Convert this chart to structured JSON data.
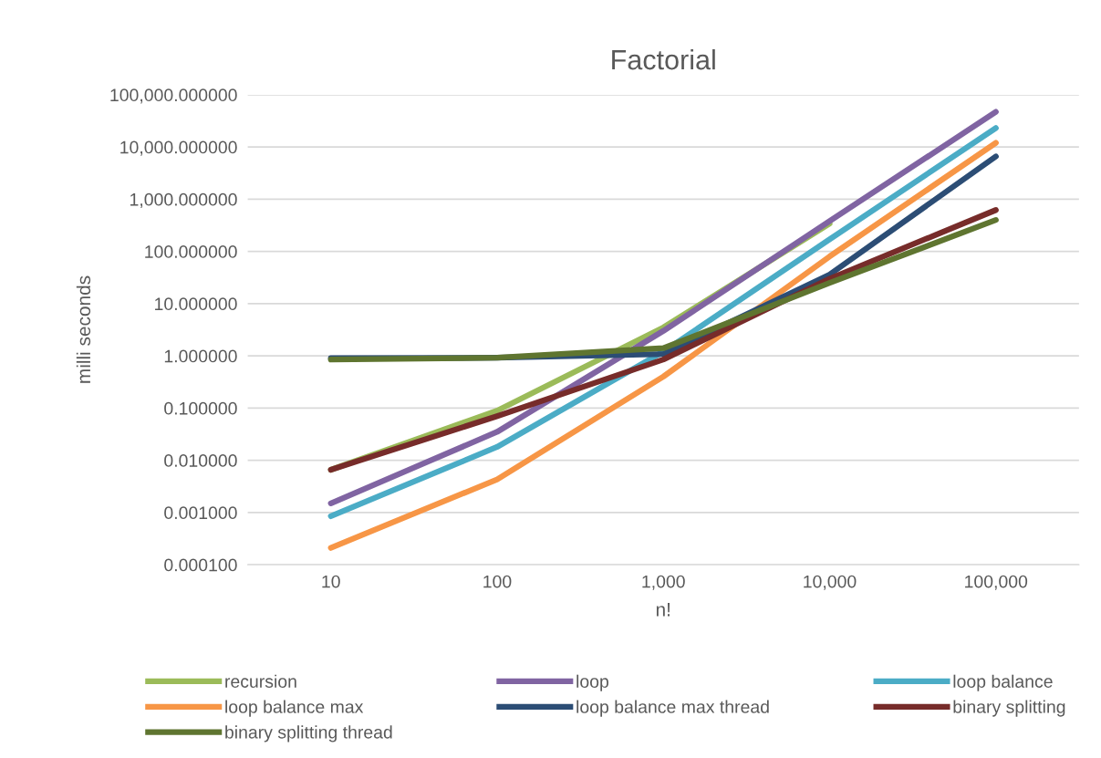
{
  "chart_data": {
    "type": "line",
    "title": "Factorial",
    "xlabel": "n!",
    "ylabel": "milli seconds",
    "categories": [
      "10",
      "100",
      "1,000",
      "10,000",
      "100,000"
    ],
    "log": "y",
    "grid": "y",
    "legend": "bottom",
    "marker": "none",
    "line_style": "solid",
    "ylim": [
      0.0001,
      100000
    ],
    "yticks": [
      {
        "value": 0.0001,
        "label": "0.000100"
      },
      {
        "value": 0.001,
        "label": "0.001000"
      },
      {
        "value": 0.01,
        "label": "0.010000"
      },
      {
        "value": 0.1,
        "label": "0.100000"
      },
      {
        "value": 1,
        "label": "1.000000"
      },
      {
        "value": 10,
        "label": "10.000000"
      },
      {
        "value": 100,
        "label": "100.000000"
      },
      {
        "value": 1000,
        "label": "1,000.000000"
      },
      {
        "value": 10000,
        "label": "10,000.000000"
      },
      {
        "value": 100000,
        "label": "100,000.000000"
      }
    ],
    "series": [
      {
        "name": "recursion",
        "color": "#9bbb59",
        "values": [
          0.0066,
          0.089,
          3.5,
          340,
          null
        ]
      },
      {
        "name": "loop",
        "color": "#8064a2",
        "values": [
          0.0015,
          0.035,
          3.0,
          380,
          47000
        ]
      },
      {
        "name": "loop balance",
        "color": "#4bacc6",
        "values": [
          0.00085,
          0.018,
          1.2,
          170,
          23000
        ]
      },
      {
        "name": "loop balance max",
        "color": "#f79646",
        "values": [
          0.00021,
          0.0043,
          0.4,
          80,
          12000
        ]
      },
      {
        "name": "loop balance max thread",
        "color": "#2c4d75",
        "values": [
          0.9,
          0.92,
          1.08,
          36,
          6600
        ]
      },
      {
        "name": "binary splitting",
        "color": "#772c2a",
        "values": [
          0.0066,
          0.07,
          0.85,
          30,
          620
        ]
      },
      {
        "name": "binary splitting thread",
        "color": "#5f7530",
        "values": [
          0.85,
          0.92,
          1.4,
          25,
          400
        ]
      }
    ]
  }
}
